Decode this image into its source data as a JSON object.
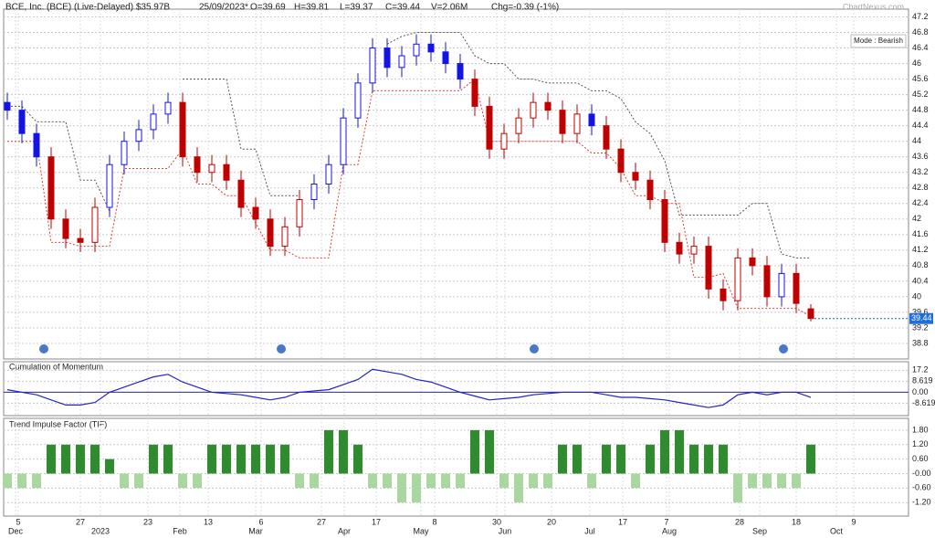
{
  "chart_data": {
    "type": "candlestick",
    "header": [
      "BCE, Inc. (BCE) (Live-Delayed) $35.97B",
      "25/09/2023*",
      "O=39.69",
      "H=39.81",
      "L=39.37",
      "C=39.44",
      "V=2.06M",
      "Chg=-0.39 (-1%)"
    ],
    "watermark": "ChartNexus.com",
    "mode": "Mode : Bearish",
    "last": 39.44,
    "last_color": "#1e6fd8",
    "ylim": [
      38.4,
      47.4
    ],
    "yticks": [
      38.8,
      39.2,
      39.6,
      40,
      40.4,
      40.8,
      41.2,
      41.6,
      42,
      42.4,
      42.8,
      43.2,
      43.6,
      44,
      44.4,
      44.8,
      45.2,
      45.6,
      46,
      46.4,
      46.8,
      47.2
    ],
    "grid": true,
    "open": [
      45.0,
      44.8,
      44.2,
      43.6,
      42.0,
      41.5,
      41.4,
      42.3,
      43.4,
      44.0,
      44.3,
      44.7,
      45.0,
      43.6,
      43.2,
      43.4,
      43.0,
      42.3,
      42.0,
      41.3,
      41.8,
      42.5,
      42.9,
      43.4,
      44.6,
      45.5,
      46.4,
      45.9,
      46.2,
      46.5,
      46.3,
      46.0,
      45.6,
      44.9,
      43.8,
      44.2,
      44.6,
      45.0,
      44.8,
      44.2,
      44.7,
      44.4,
      43.8,
      43.2,
      43.0,
      42.5,
      41.4,
      41.1,
      41.3,
      40.2,
      39.9,
      41.0,
      40.8,
      40.0,
      40.6,
      39.69
    ],
    "high": [
      45.25,
      45.05,
      44.45,
      43.85,
      42.25,
      41.75,
      42.55,
      43.65,
      44.25,
      44.55,
      44.95,
      45.25,
      45.25,
      43.85,
      43.65,
      43.65,
      43.25,
      42.55,
      42.25,
      42.05,
      42.75,
      43.15,
      43.65,
      44.85,
      45.75,
      46.65,
      46.65,
      46.45,
      46.75,
      46.75,
      46.55,
      46.25,
      45.85,
      45.15,
      44.45,
      44.85,
      45.25,
      45.25,
      45.05,
      44.95,
      44.95,
      44.65,
      44.05,
      43.45,
      43.25,
      42.75,
      41.65,
      41.55,
      41.55,
      40.45,
      41.25,
      41.25,
      41.05,
      40.85,
      40.85,
      39.81
    ],
    "low": [
      44.55,
      43.95,
      43.35,
      41.75,
      41.25,
      41.15,
      41.15,
      42.05,
      43.15,
      43.75,
      44.05,
      44.45,
      43.35,
      42.95,
      42.95,
      42.75,
      42.05,
      41.75,
      41.05,
      41.05,
      41.55,
      42.25,
      42.65,
      43.15,
      44.35,
      45.25,
      45.65,
      45.65,
      45.95,
      46.05,
      45.75,
      45.35,
      44.65,
      43.55,
      43.55,
      43.95,
      44.35,
      44.55,
      43.95,
      43.95,
      44.15,
      43.55,
      42.95,
      42.75,
      42.25,
      41.15,
      40.85,
      40.85,
      39.95,
      39.65,
      39.65,
      40.55,
      39.75,
      39.75,
      39.58,
      39.37
    ],
    "close": [
      44.8,
      44.2,
      43.6,
      42.0,
      41.5,
      41.4,
      42.3,
      43.4,
      44.0,
      44.3,
      44.7,
      45.0,
      43.6,
      43.2,
      43.4,
      43.0,
      42.3,
      42.0,
      41.3,
      41.8,
      42.5,
      42.9,
      43.4,
      44.6,
      45.5,
      46.4,
      45.9,
      46.2,
      46.5,
      46.3,
      46.0,
      45.6,
      44.9,
      43.8,
      44.2,
      44.6,
      45.0,
      44.8,
      44.2,
      44.7,
      44.4,
      43.8,
      43.2,
      43.0,
      42.5,
      41.4,
      41.1,
      41.3,
      40.2,
      39.9,
      41.0,
      40.8,
      40.0,
      40.6,
      39.83,
      39.44
    ],
    "colors": [
      "#1414e6",
      "#1414e6",
      "#1414e6",
      "#c00000",
      "#c00000",
      "#c00000",
      "#c00000",
      "#1414e6",
      "#1414e6",
      "#1414e6",
      "#1414e6",
      "#1414e6",
      "#c00000",
      "#c00000",
      "#c00000",
      "#c00000",
      "#c00000",
      "#c00000",
      "#c00000",
      "#c00000",
      "#c00000",
      "#1414e6",
      "#1414e6",
      "#1414e6",
      "#1414e6",
      "#1414e6",
      "#1414e6",
      "#1414e6",
      "#1414e6",
      "#1414e6",
      "#1414e6",
      "#1414e6",
      "#c00000",
      "#c00000",
      "#c00000",
      "#c00000",
      "#c00000",
      "#c00000",
      "#c00000",
      "#c00000",
      "#1414e6",
      "#c00000",
      "#c00000",
      "#c00000",
      "#c00000",
      "#c00000",
      "#c00000",
      "#c00000",
      "#c00000",
      "#c00000",
      "#c00000",
      "#c00000",
      "#c00000",
      "#1414e6",
      "#c00000",
      "#c00000"
    ],
    "upper_stop": {
      "color": "#555555",
      "values": [
        44.9,
        44.9,
        44.5,
        44.5,
        44.5,
        43.0,
        43.0,
        42.2,
        null,
        null,
        null,
        null,
        45.6,
        45.6,
        45.6,
        45.6,
        43.8,
        43.8,
        42.6,
        42.6,
        42.6,
        null,
        null,
        null,
        null,
        null,
        46.5,
        46.7,
        46.8,
        46.8,
        46.8,
        46.8,
        46.2,
        46.0,
        46.0,
        45.6,
        45.6,
        45.5,
        45.5,
        45.5,
        45.3,
        45.3,
        45.1,
        44.5,
        44.2,
        43.5,
        42.1,
        42.1,
        42.1,
        42.1,
        42.1,
        42.4,
        42.4,
        41.1,
        41.0,
        41.0
      ]
    },
    "lower_stop": {
      "color": "#e04030",
      "values": [
        44.0,
        44.0,
        44.0,
        41.4,
        41.4,
        41.3,
        41.3,
        41.3,
        43.3,
        43.3,
        43.3,
        43.3,
        43.8,
        42.9,
        42.9,
        42.6,
        42.6,
        41.9,
        41.2,
        41.2,
        41.0,
        41.0,
        41.0,
        43.4,
        43.4,
        45.3,
        45.3,
        45.3,
        45.3,
        45.3,
        45.3,
        45.3,
        45.6,
        44.0,
        44.0,
        44.0,
        44.0,
        44.0,
        44.0,
        44.0,
        43.7,
        43.7,
        43.3,
        42.6,
        42.6,
        42.4,
        42.4,
        40.5,
        40.5,
        40.6,
        39.7,
        39.7,
        39.7,
        39.7,
        39.7,
        39.5
      ]
    },
    "momentum": {
      "title": "Cumulation of Momentum",
      "color": "#2222cc",
      "ylim": [
        -18.3,
        23.9
      ],
      "yticks": [
        -8.619,
        {
          "value": 0,
          "label": "0.00"
        },
        8.619,
        17.2
      ],
      "values": [
        2,
        0,
        -2,
        -6,
        -10,
        -10,
        -8,
        0,
        4,
        8,
        12,
        14,
        8,
        4,
        0,
        -1,
        -2,
        -4,
        -6,
        -4,
        0,
        1,
        2,
        6,
        10,
        18,
        16,
        14,
        10,
        8,
        4,
        0,
        -3,
        -6,
        -5,
        -4,
        -2,
        -1,
        0,
        0,
        0,
        -2,
        -4,
        -4,
        -5,
        -6,
        -8,
        -10,
        -12,
        -10,
        -2,
        0,
        -2,
        0,
        0,
        -4
      ]
    },
    "tif": {
      "title": "Trend Impulse Factor (TIF)",
      "pos_color": "#2e8b2e",
      "neg_color": "#a8d8a0",
      "ylim": [
        -1.76,
        2.29
      ],
      "yticks": [
        {
          "value": -1.2,
          "label": "-1.20"
        },
        {
          "value": -0.6,
          "label": "-0.60"
        },
        {
          "value": 0,
          "label": "-0.00"
        },
        {
          "value": 0.6,
          "label": "0.60"
        },
        {
          "value": 1.2,
          "label": "1.20"
        },
        {
          "value": 1.8,
          "label": "1.80"
        }
      ],
      "values": [
        -0.6,
        -0.6,
        -0.6,
        1.2,
        1.2,
        1.2,
        1.2,
        0.6,
        -0.6,
        -0.6,
        1.2,
        1.2,
        -0.6,
        -0.6,
        1.2,
        1.2,
        1.2,
        1.2,
        1.2,
        1.2,
        -0.6,
        -0.6,
        1.8,
        1.8,
        1.2,
        -0.6,
        -0.6,
        -1.2,
        -1.2,
        -0.6,
        -0.6,
        -0.6,
        1.8,
        1.8,
        -0.6,
        -1.2,
        -0.6,
        -0.6,
        1.2,
        1.2,
        -0.6,
        1.2,
        1.2,
        -0.6,
        1.2,
        1.8,
        1.8,
        1.2,
        1.2,
        1.2,
        -1.2,
        -0.6,
        -0.6,
        -0.6,
        -0.6,
        1.2
      ]
    },
    "xlabels_top": [
      "5",
      "27",
      "23",
      "13",
      "6",
      "27",
      "17",
      "8",
      "30",
      "20",
      "17",
      "7",
      "28",
      "18",
      "9"
    ],
    "xlabels_bottom": [
      "Dec",
      "2023",
      "Feb",
      "Mar",
      "Apr",
      "May",
      "Jun",
      "Jul",
      "Aug",
      "Sep",
      "Oct"
    ]
  }
}
